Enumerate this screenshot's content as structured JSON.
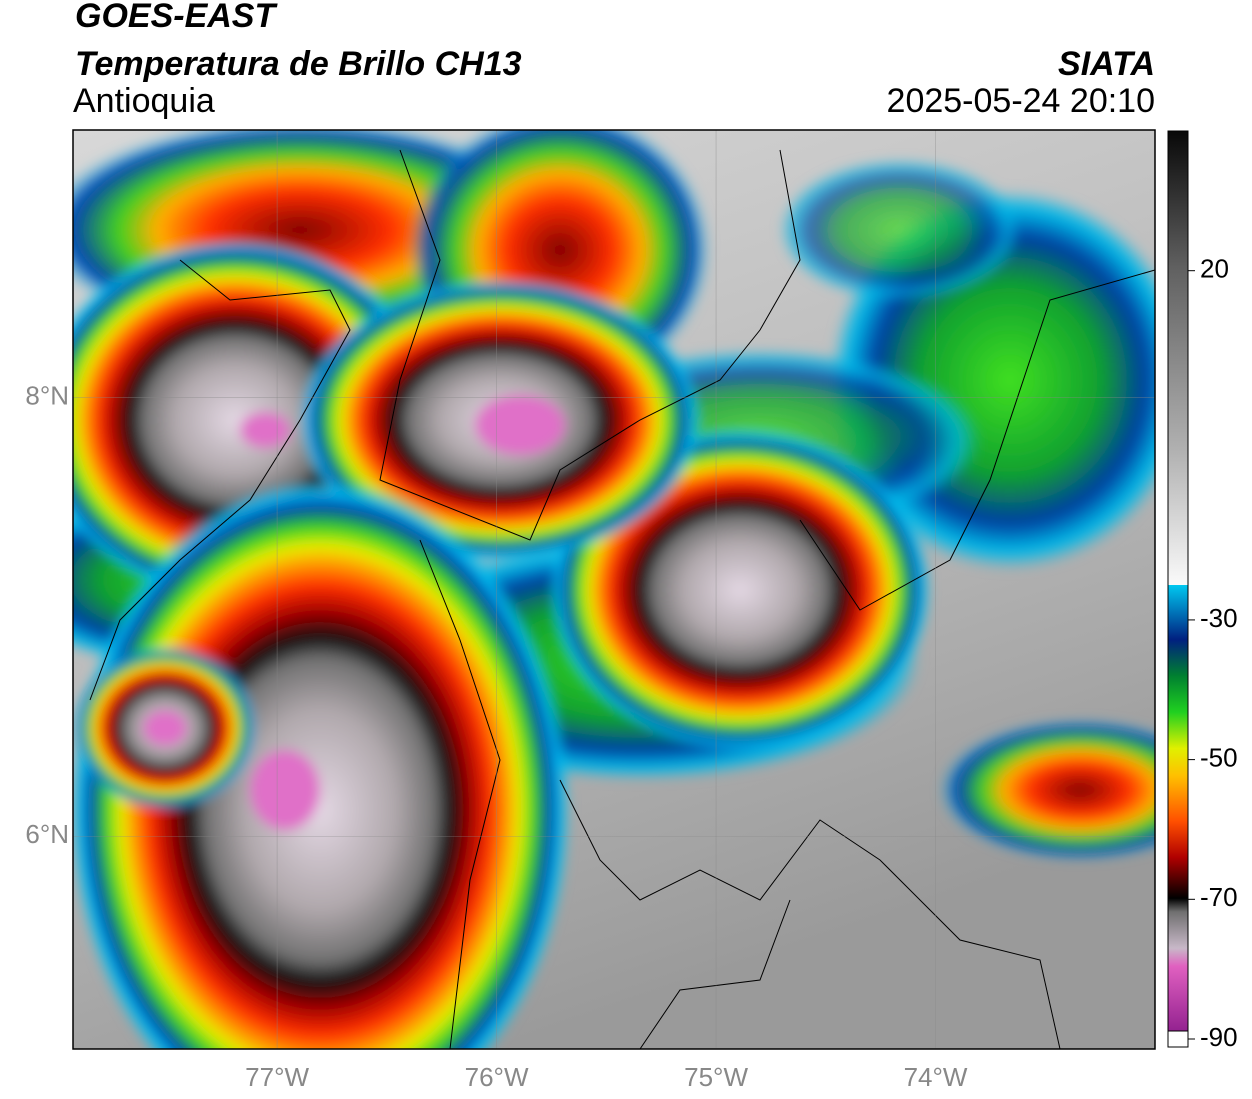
{
  "header": {
    "satellite": "GOES-EAST",
    "product": "Temperatura de Brillo CH13",
    "region": "Antioquia",
    "source": "SIATA",
    "datetime": "2025-05-24 20:10"
  },
  "map": {
    "xlim": [
      -77.93,
      -73.0
    ],
    "ylim": [
      5.03,
      9.22
    ],
    "xticks": [
      {
        "value": -77,
        "label": "77°W"
      },
      {
        "value": -76,
        "label": "76°W"
      },
      {
        "value": -75,
        "label": "75°W"
      },
      {
        "value": -74,
        "label": "74°W"
      }
    ],
    "yticks": [
      {
        "value": 8,
        "label": "8°N"
      },
      {
        "value": 6,
        "label": "6°N"
      }
    ]
  },
  "colorbar": {
    "lim": [
      -90,
      40
    ],
    "ticks": [
      20,
      -30,
      -50,
      -70,
      -90
    ]
  }
}
